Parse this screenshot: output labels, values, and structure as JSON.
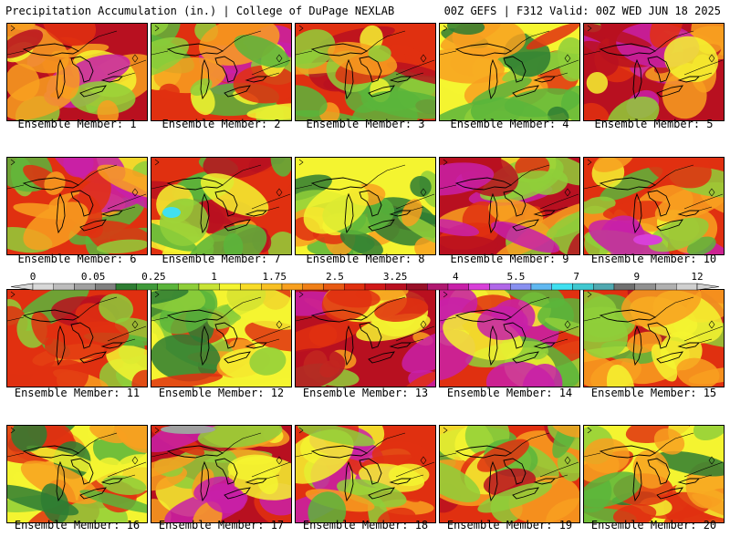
{
  "header": {
    "left_title": "Precipitation Accumulation (in.) | College of DuPage NEXLAB",
    "right_title": "00Z GEFS | F312 Valid: 00Z WED JUN 18 2025"
  },
  "members": [
    {
      "label": "Ensemble Member:",
      "number": "1"
    },
    {
      "label": "Ensemble Member:",
      "number": "2"
    },
    {
      "label": "Ensemble Member:",
      "number": "3"
    },
    {
      "label": "Ensemble Member:",
      "number": "4"
    },
    {
      "label": "Ensemble Member:",
      "number": "5"
    },
    {
      "label": "Ensemble Member:",
      "number": "6"
    },
    {
      "label": "Ensemble Member:",
      "number": "7"
    },
    {
      "label": "Ensemble Member:",
      "number": "8"
    },
    {
      "label": "Ensemble Member:",
      "number": "9"
    },
    {
      "label": "Ensemble Member:",
      "number": "10"
    },
    {
      "label": "Ensemble Member:",
      "number": "11"
    },
    {
      "label": "Ensemble Member:",
      "number": "12"
    },
    {
      "label": "Ensemble Member:",
      "number": "13"
    },
    {
      "label": "Ensemble Member:",
      "number": "14"
    },
    {
      "label": "Ensemble Member:",
      "number": "15"
    },
    {
      "label": "Ensemble Member:",
      "number": "16"
    },
    {
      "label": "Ensemble Member:",
      "number": "17"
    },
    {
      "label": "Ensemble Member:",
      "number": "18"
    },
    {
      "label": "Ensemble Member:",
      "number": "19"
    },
    {
      "label": "Ensemble Member:",
      "number": "20"
    }
  ],
  "colorbar": {
    "tick_labels": [
      "0",
      "0.05",
      "0.25",
      "1",
      "1.75",
      "2.5",
      "3.25",
      "4",
      "5.5",
      "7",
      "9",
      "12"
    ],
    "colors": [
      "#d8d8d8",
      "#bcbcbc",
      "#a0a0a0",
      "#808080",
      "#2e7d32",
      "#3f9a3a",
      "#5bb53b",
      "#8fcf3a",
      "#c8e436",
      "#f4f430",
      "#f8dc28",
      "#f8c024",
      "#f8a020",
      "#f08018",
      "#e85a14",
      "#e03010",
      "#d01818",
      "#b81020",
      "#981028",
      "#b01870",
      "#c820a8",
      "#d840d8",
      "#b068e8",
      "#8890f0",
      "#60b8f0",
      "#40e0f0",
      "#40c8d0",
      "#50a8b0",
      "#707070",
      "#909090",
      "#b0b0b0",
      "#d0d0d0"
    ]
  },
  "map_colors": {
    "dry_green": "#2e7d32",
    "mid_green": "#5bb53b",
    "light_green": "#8fcf3a",
    "yellow": "#f4f430",
    "orange": "#f8a020",
    "red": "#e03010",
    "dark_red": "#b81020",
    "magenta": "#c820a8",
    "violet": "#d840d8",
    "cyan": "#40e0f0",
    "gray": "#a0a0a0"
  }
}
